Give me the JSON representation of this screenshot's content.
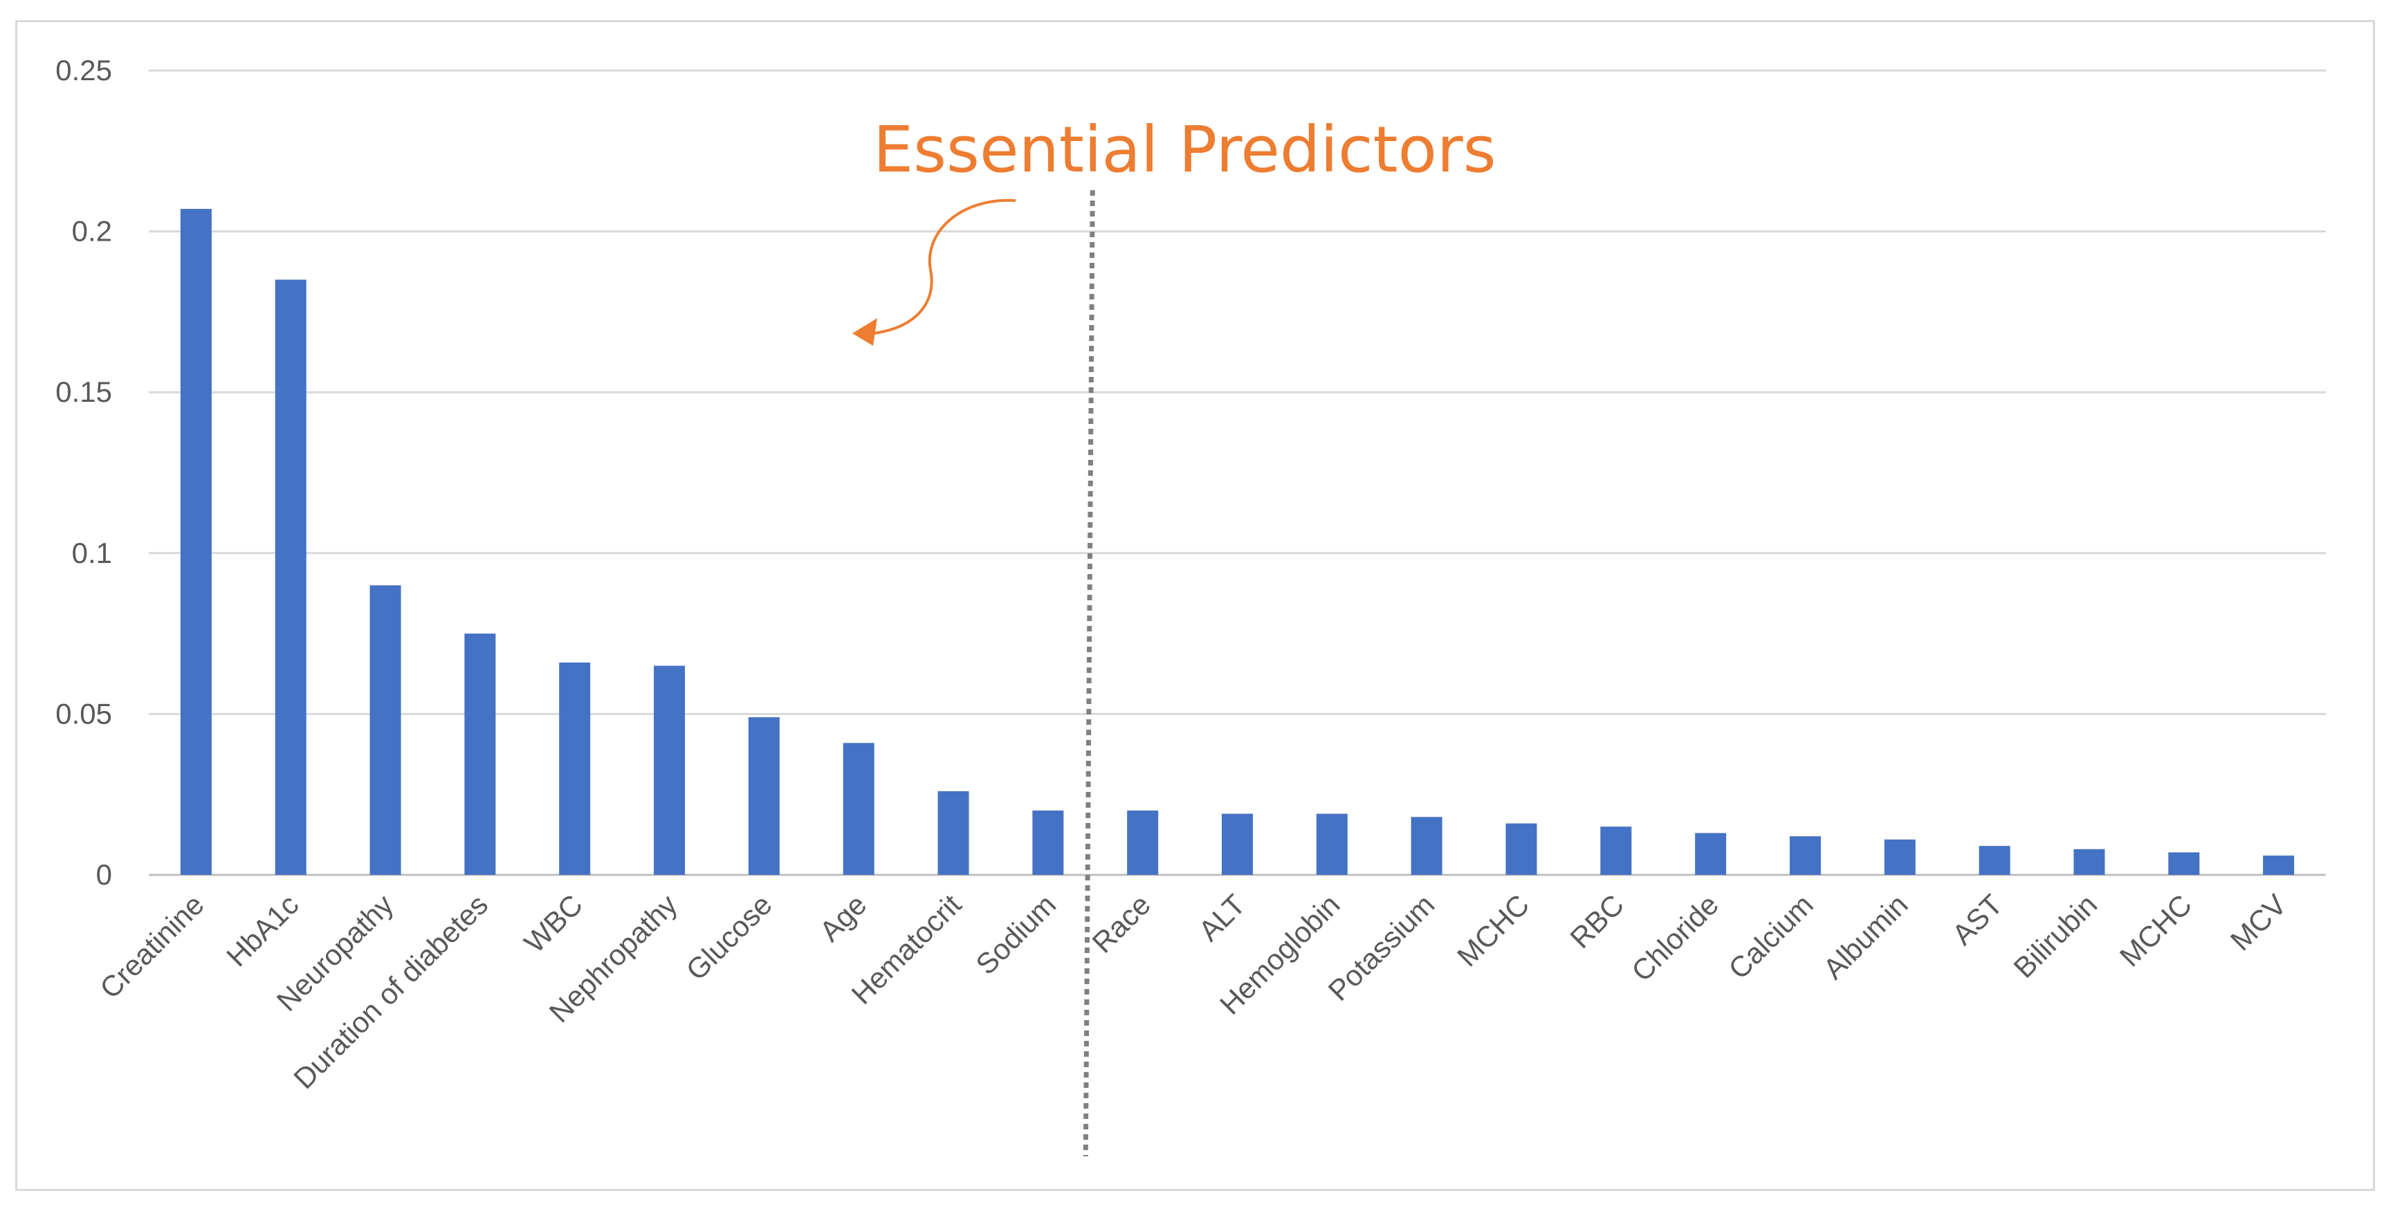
{
  "chart_data": {
    "type": "bar",
    "title": "",
    "xlabel": "",
    "ylabel": "",
    "ylim": [
      0,
      0.25
    ],
    "yticks": [
      "0",
      "0.05",
      "0.1",
      "0.15",
      "0.2",
      "0.25"
    ],
    "grid": true,
    "legend": "none",
    "bar_color": "#4472C4",
    "categories": [
      "Creatinine",
      "HbA1c",
      "Neuropathy",
      "Duration of diabetes",
      "WBC",
      "Nephropathy",
      "Glucose",
      "Age",
      "Hematocrit",
      "Sodium",
      "Race",
      "ALT",
      "Hemoglobin",
      "Potassium",
      "MCHC",
      "RBC",
      "Chloride",
      "Calcium",
      "Albumin",
      "AST",
      "Bilirubin",
      "MCHC",
      "MCV"
    ],
    "values": [
      0.207,
      0.185,
      0.09,
      0.075,
      0.066,
      0.065,
      0.049,
      0.041,
      0.026,
      0.02,
      0.02,
      0.019,
      0.019,
      0.018,
      0.016,
      0.015,
      0.013,
      0.012,
      0.011,
      0.009,
      0.008,
      0.007,
      0.006
    ],
    "annotation": {
      "text": "Essential Predictors",
      "color": "#ED7D31",
      "divider_after_index": 9,
      "divider_color": "#808080"
    }
  }
}
